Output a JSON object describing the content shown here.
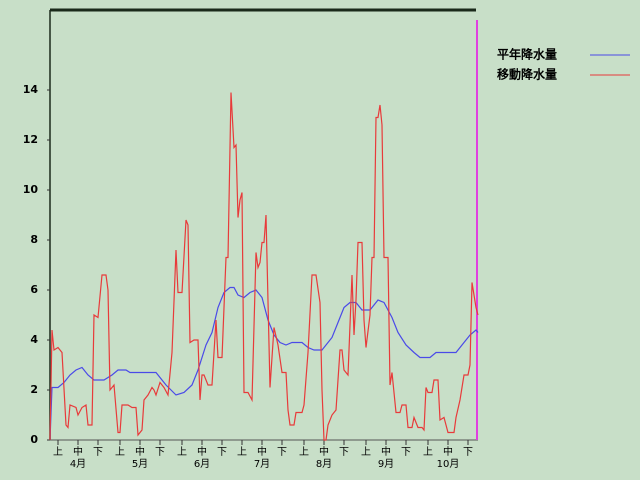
{
  "chart_data": {
    "type": "line",
    "xlim": [
      0,
      214
    ],
    "ylim": [
      0,
      17.2
    ],
    "yticks": [
      0,
      2,
      4,
      6,
      8,
      10,
      12,
      14
    ],
    "xticks": [
      {
        "value": 4,
        "label": "上"
      },
      {
        "value": 14,
        "label": "中"
      },
      {
        "value": 24,
        "label": "下"
      },
      {
        "value": 35,
        "label": "上"
      },
      {
        "value": 45,
        "label": "中"
      },
      {
        "value": 55,
        "label": "下"
      },
      {
        "value": 66,
        "label": "上"
      },
      {
        "value": 76,
        "label": "中"
      },
      {
        "value": 86,
        "label": "下"
      },
      {
        "value": 96,
        "label": "上"
      },
      {
        "value": 106,
        "label": "中"
      },
      {
        "value": 116,
        "label": "下"
      },
      {
        "value": 127,
        "label": "上"
      },
      {
        "value": 137,
        "label": "中"
      },
      {
        "value": 147,
        "label": "下"
      },
      {
        "value": 158,
        "label": "上"
      },
      {
        "value": 168,
        "label": "中"
      },
      {
        "value": 178,
        "label": "下"
      },
      {
        "value": 189,
        "label": "上"
      },
      {
        "value": 199,
        "label": "中"
      },
      {
        "value": 209,
        "label": "下"
      }
    ],
    "month_labels": [
      {
        "value": 14,
        "label": "4月"
      },
      {
        "value": 45,
        "label": "5月"
      },
      {
        "value": 76,
        "label": "6月"
      },
      {
        "value": 106,
        "label": "7月"
      },
      {
        "value": 137,
        "label": "8月"
      },
      {
        "value": 168,
        "label": "9月"
      },
      {
        "value": 199,
        "label": "10月"
      }
    ],
    "series": [
      {
        "name": "平年降水量",
        "color": "#4a4ae8",
        "x": [
          0,
          1,
          4,
          7,
          10,
          13,
          16,
          19,
          22,
          27,
          31,
          34,
          38,
          40,
          53,
          58,
          63,
          67,
          71,
          74,
          78,
          81,
          84,
          87,
          90,
          92,
          94,
          97,
          100,
          103,
          106,
          109,
          112,
          115,
          118,
          121,
          126,
          129,
          132,
          136,
          141,
          144,
          147,
          150,
          153,
          156,
          160,
          164,
          167,
          171,
          174,
          178,
          182,
          185,
          190,
          193,
          203,
          207,
          210,
          213,
          214
        ],
        "values": [
          0,
          2.1,
          2.1,
          2.3,
          2.6,
          2.8,
          2.9,
          2.6,
          2.4,
          2.4,
          2.6,
          2.8,
          2.8,
          2.7,
          2.7,
          2.2,
          1.8,
          1.9,
          2.2,
          2.8,
          3.8,
          4.3,
          5.3,
          5.9,
          6.1,
          6.1,
          5.8,
          5.7,
          5.9,
          6.0,
          5.7,
          4.8,
          4.2,
          3.9,
          3.8,
          3.9,
          3.9,
          3.7,
          3.6,
          3.6,
          4.1,
          4.7,
          5.3,
          5.5,
          5.5,
          5.2,
          5.2,
          5.6,
          5.5,
          4.9,
          4.3,
          3.8,
          3.5,
          3.3,
          3.3,
          3.5,
          3.5,
          3.9,
          4.2,
          4.4,
          4.3
        ]
      },
      {
        "name": "移動降水量",
        "color": "#e83a3a",
        "x": [
          0,
          1,
          2,
          4,
          6,
          8,
          9,
          10,
          13,
          14,
          16,
          18,
          19,
          21,
          22,
          24,
          26,
          28,
          29,
          30,
          32,
          34,
          35,
          36,
          39,
          41,
          43,
          44,
          46,
          47,
          49,
          51,
          52,
          53,
          55,
          57,
          59,
          61,
          63,
          64,
          66,
          68,
          69,
          70,
          72,
          74,
          75,
          76,
          77,
          79,
          81,
          83,
          84,
          86,
          88,
          89,
          90.5,
          92,
          93,
          94,
          95,
          96,
          97,
          99,
          101,
          103,
          104,
          105,
          106,
          107,
          108,
          110,
          112,
          114,
          116,
          118,
          119,
          120,
          122,
          123,
          126,
          127,
          129,
          131,
          133,
          135,
          136,
          137,
          138,
          139,
          141,
          143,
          145,
          146,
          147,
          149,
          151,
          152,
          153,
          154,
          156,
          157,
          158,
          160,
          161,
          162,
          163,
          164,
          165,
          166,
          167,
          169,
          170,
          171,
          173,
          175,
          176,
          178,
          179,
          181,
          182,
          184,
          186,
          187,
          188,
          189,
          191,
          192,
          194,
          195,
          197,
          199,
          202,
          203,
          205,
          207,
          209,
          210,
          211,
          213,
          214
        ],
        "values": [
          0,
          4.4,
          3.6,
          3.7,
          3.5,
          0.6,
          0.5,
          1.4,
          1.3,
          1.0,
          1.3,
          1.4,
          0.6,
          0.6,
          5.0,
          4.9,
          6.6,
          6.6,
          6.0,
          2.0,
          2.2,
          0.3,
          0.3,
          1.4,
          1.4,
          1.3,
          1.3,
          0.2,
          0.4,
          1.6,
          1.8,
          2.1,
          2.0,
          1.8,
          2.3,
          2.1,
          1.8,
          3.5,
          7.6,
          5.9,
          5.9,
          8.8,
          8.6,
          3.9,
          4.0,
          4.0,
          1.6,
          2.6,
          2.6,
          2.2,
          2.2,
          4.8,
          3.3,
          3.3,
          7.3,
          7.3,
          13.9,
          11.7,
          11.8,
          8.9,
          9.6,
          9.9,
          1.9,
          1.9,
          1.6,
          7.5,
          6.9,
          7.1,
          7.9,
          7.9,
          9.0,
          2.1,
          4.5,
          3.8,
          2.7,
          2.7,
          1.2,
          0.6,
          0.6,
          1.1,
          1.1,
          1.4,
          3.5,
          6.6,
          6.6,
          5.5,
          2.0,
          0,
          0,
          0.6,
          1.0,
          1.2,
          3.6,
          3.6,
          2.8,
          2.6,
          6.6,
          4.2,
          5.6,
          7.9,
          7.9,
          4.8,
          3.7,
          5.0,
          7.3,
          7.3,
          12.9,
          12.9,
          13.4,
          12.6,
          7.3,
          7.3,
          2.2,
          2.7,
          1.1,
          1.1,
          1.4,
          1.4,
          0.5,
          0.5,
          0.9,
          0.5,
          0.5,
          0.4,
          2.1,
          1.9,
          1.9,
          2.4,
          2.4,
          0.8,
          0.9,
          0.3,
          0.3,
          0.9,
          1.6,
          2.6,
          2.6,
          3.0,
          6.3,
          5.3,
          5.0
        ]
      }
    ]
  }
}
